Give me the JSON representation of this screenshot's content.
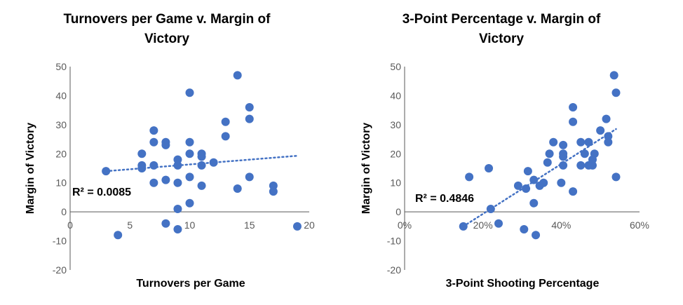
{
  "chart_data": [
    {
      "type": "scatter",
      "title_lines": [
        "Turnovers per Game v. Margin of",
        "Victory"
      ],
      "xlabel": "Turnovers per Game",
      "ylabel": "Margin of Victory",
      "xlim": [
        0,
        20
      ],
      "ylim": [
        -20,
        50
      ],
      "xticks": [
        0,
        5,
        10,
        15,
        20
      ],
      "xtick_labels": [
        "0",
        "5",
        "10",
        "15",
        "20"
      ],
      "yticks": [
        -20,
        -10,
        0,
        10,
        20,
        30,
        40,
        50
      ],
      "ytick_labels": [
        "-20",
        "-10",
        "0",
        "10",
        "20",
        "30",
        "40",
        "50"
      ],
      "grid": false,
      "color": "#4472c4",
      "r2_label": "R² = 0.0085",
      "trendline": {
        "x": [
          3,
          19
        ],
        "y": [
          14,
          19.3
        ]
      },
      "points": [
        {
          "x": 3,
          "y": 14
        },
        {
          "x": 4,
          "y": -8
        },
        {
          "x": 6,
          "y": 20
        },
        {
          "x": 6,
          "y": 16
        },
        {
          "x": 6,
          "y": 15
        },
        {
          "x": 7,
          "y": 28
        },
        {
          "x": 7,
          "y": 24
        },
        {
          "x": 7,
          "y": 16
        },
        {
          "x": 7,
          "y": 10
        },
        {
          "x": 8,
          "y": 24
        },
        {
          "x": 8,
          "y": 23
        },
        {
          "x": 8,
          "y": 11
        },
        {
          "x": 8,
          "y": -4
        },
        {
          "x": 9,
          "y": 18
        },
        {
          "x": 9,
          "y": 16
        },
        {
          "x": 9,
          "y": 10
        },
        {
          "x": 9,
          "y": 1
        },
        {
          "x": 9,
          "y": -6
        },
        {
          "x": 10,
          "y": 41
        },
        {
          "x": 10,
          "y": 24
        },
        {
          "x": 10,
          "y": 20
        },
        {
          "x": 10,
          "y": 12
        },
        {
          "x": 10,
          "y": 3
        },
        {
          "x": 11,
          "y": 20
        },
        {
          "x": 11,
          "y": 19
        },
        {
          "x": 11,
          "y": 16
        },
        {
          "x": 11,
          "y": 9
        },
        {
          "x": 12,
          "y": 17
        },
        {
          "x": 13,
          "y": 31
        },
        {
          "x": 13,
          "y": 26
        },
        {
          "x": 14,
          "y": 47
        },
        {
          "x": 14,
          "y": 8
        },
        {
          "x": 15,
          "y": 36
        },
        {
          "x": 15,
          "y": 32
        },
        {
          "x": 15,
          "y": 12
        },
        {
          "x": 17,
          "y": 9
        },
        {
          "x": 17,
          "y": 7
        },
        {
          "x": 19,
          "y": -5
        }
      ]
    },
    {
      "type": "scatter",
      "title_lines": [
        "3-Point Percentage v. Margin of",
        "Victory"
      ],
      "xlabel": "3-Point Shooting Percentage",
      "ylabel": "Margin of Victory",
      "xlim": [
        0,
        0.6
      ],
      "ylim": [
        -20,
        50
      ],
      "xticks": [
        0,
        0.2,
        0.4,
        0.6
      ],
      "xtick_labels": [
        "0%",
        "20%",
        "40%",
        "60%"
      ],
      "yticks": [
        -20,
        -10,
        0,
        10,
        20,
        30,
        40,
        50
      ],
      "ytick_labels": [
        "-20",
        "-10",
        "0",
        "10",
        "20",
        "30",
        "40",
        "50"
      ],
      "grid": false,
      "color": "#4472c4",
      "r2_label": "R² = 0.4846",
      "trendline": {
        "x": [
          0.15,
          0.54
        ],
        "y": [
          -5,
          28.5
        ]
      },
      "points": [
        {
          "x": 0.15,
          "y": -5
        },
        {
          "x": 0.165,
          "y": 12
        },
        {
          "x": 0.215,
          "y": 15
        },
        {
          "x": 0.22,
          "y": 1
        },
        {
          "x": 0.24,
          "y": -4
        },
        {
          "x": 0.29,
          "y": 9
        },
        {
          "x": 0.305,
          "y": -6
        },
        {
          "x": 0.31,
          "y": 8
        },
        {
          "x": 0.315,
          "y": 14
        },
        {
          "x": 0.33,
          "y": 11
        },
        {
          "x": 0.33,
          "y": 3
        },
        {
          "x": 0.335,
          "y": -8
        },
        {
          "x": 0.345,
          "y": 9
        },
        {
          "x": 0.355,
          "y": 10
        },
        {
          "x": 0.365,
          "y": 17
        },
        {
          "x": 0.37,
          "y": 20
        },
        {
          "x": 0.38,
          "y": 24
        },
        {
          "x": 0.4,
          "y": 10
        },
        {
          "x": 0.405,
          "y": 20
        },
        {
          "x": 0.405,
          "y": 19
        },
        {
          "x": 0.405,
          "y": 16
        },
        {
          "x": 0.405,
          "y": 23
        },
        {
          "x": 0.43,
          "y": 36
        },
        {
          "x": 0.43,
          "y": 31
        },
        {
          "x": 0.43,
          "y": 7
        },
        {
          "x": 0.45,
          "y": 24
        },
        {
          "x": 0.45,
          "y": 16
        },
        {
          "x": 0.46,
          "y": 20
        },
        {
          "x": 0.47,
          "y": 24
        },
        {
          "x": 0.47,
          "y": 16
        },
        {
          "x": 0.48,
          "y": 16
        },
        {
          "x": 0.48,
          "y": 18
        },
        {
          "x": 0.485,
          "y": 20
        },
        {
          "x": 0.5,
          "y": 28
        },
        {
          "x": 0.515,
          "y": 32
        },
        {
          "x": 0.52,
          "y": 24
        },
        {
          "x": 0.52,
          "y": 26
        },
        {
          "x": 0.535,
          "y": 47
        },
        {
          "x": 0.54,
          "y": 41
        },
        {
          "x": 0.54,
          "y": 12
        }
      ]
    }
  ]
}
